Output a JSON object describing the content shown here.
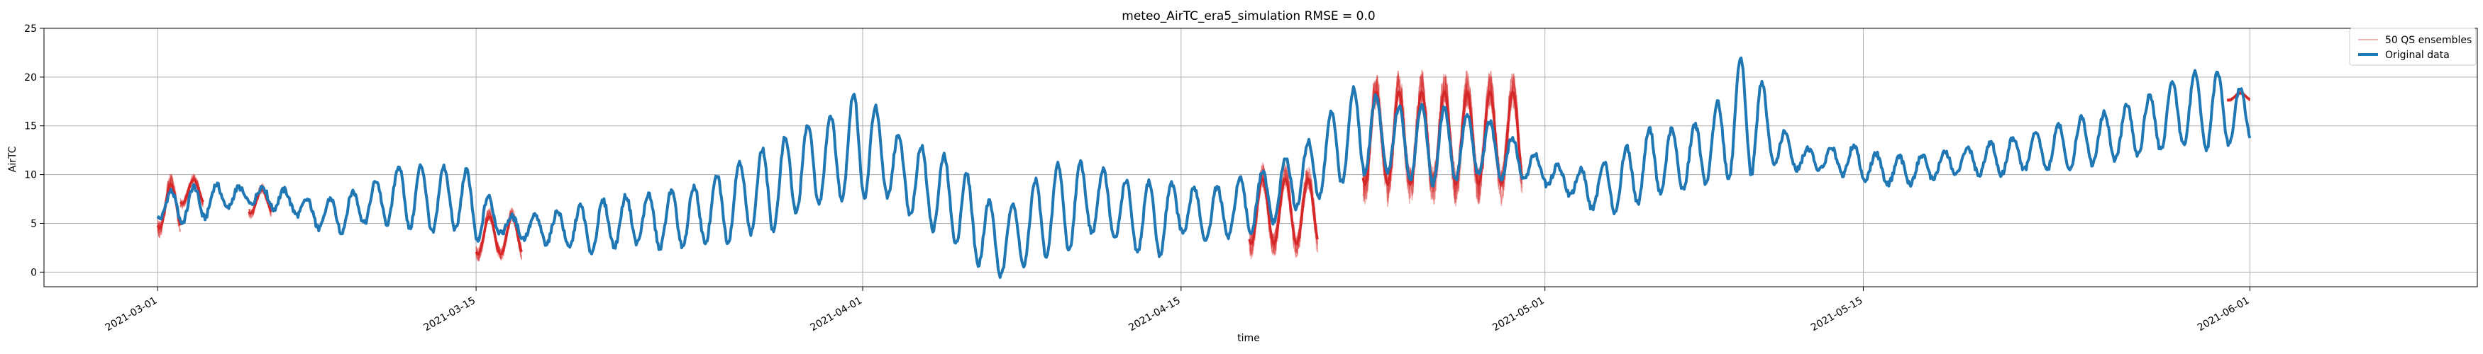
{
  "chart_data": {
    "type": "line",
    "title": "meteo_AirTC_era5_simulation  RMSE = 0.0",
    "xlabel": "time",
    "ylabel": "AirTC",
    "xlim": [
      "2021-02-24",
      "2021-06-11"
    ],
    "ylim": [
      -1.5,
      25
    ],
    "yticks": [
      0,
      5,
      10,
      15,
      20,
      25
    ],
    "xticks": [
      "2021-03-01",
      "2021-03-15",
      "2021-04-01",
      "2021-04-15",
      "2021-05-01",
      "2021-05-15",
      "2021-06-01"
    ],
    "grid": true,
    "legend": "top-right",
    "colors": {
      "original": "#1f77b4",
      "ensembles": "#d62728"
    },
    "series": [
      {
        "name": "Original data",
        "x": [
          "2021-03-01",
          "2021-03-02",
          "2021-03-03",
          "2021-03-04",
          "2021-03-05",
          "2021-03-06",
          "2021-03-07",
          "2021-03-08",
          "2021-03-09",
          "2021-03-10",
          "2021-03-11",
          "2021-03-12",
          "2021-03-13",
          "2021-03-14",
          "2021-03-15",
          "2021-03-16",
          "2021-03-17",
          "2021-03-18",
          "2021-03-19",
          "2021-03-20",
          "2021-03-21",
          "2021-03-22",
          "2021-03-23",
          "2021-03-24",
          "2021-03-25",
          "2021-03-26",
          "2021-03-27",
          "2021-03-28",
          "2021-03-29",
          "2021-03-30",
          "2021-03-31",
          "2021-04-01",
          "2021-04-02",
          "2021-04-03",
          "2021-04-04",
          "2021-04-05",
          "2021-04-06",
          "2021-04-07",
          "2021-04-08",
          "2021-04-09",
          "2021-04-10",
          "2021-04-11",
          "2021-04-12",
          "2021-04-13",
          "2021-04-14",
          "2021-04-15",
          "2021-04-16",
          "2021-04-17",
          "2021-04-18",
          "2021-04-19",
          "2021-04-20",
          "2021-04-21",
          "2021-04-22",
          "2021-04-23",
          "2021-04-24",
          "2021-04-25",
          "2021-04-26",
          "2021-04-27",
          "2021-04-28",
          "2021-04-29",
          "2021-04-30",
          "2021-05-01",
          "2021-05-02",
          "2021-05-03",
          "2021-05-04",
          "2021-05-05",
          "2021-05-06",
          "2021-05-07",
          "2021-05-08",
          "2021-05-09",
          "2021-05-10",
          "2021-05-11",
          "2021-05-12",
          "2021-05-13",
          "2021-05-14",
          "2021-05-15",
          "2021-05-16",
          "2021-05-17",
          "2021-05-18",
          "2021-05-19",
          "2021-05-20",
          "2021-05-21",
          "2021-05-22",
          "2021-05-23",
          "2021-05-24",
          "2021-05-25",
          "2021-05-26",
          "2021-05-27",
          "2021-05-28",
          "2021-05-29",
          "2021-05-30",
          "2021-05-31",
          "2021-06-01"
        ],
        "min": [
          5.5,
          5.0,
          5.5,
          6.5,
          7.0,
          6.5,
          6.0,
          4.5,
          4.0,
          5.0,
          5.0,
          4.5,
          4.0,
          4.5,
          3.0,
          4.0,
          3.5,
          3.0,
          2.5,
          2.0,
          2.5,
          3.0,
          2.5,
          2.5,
          3.0,
          3.0,
          4.0,
          4.0,
          6.0,
          7.0,
          7.5,
          7.5,
          8.0,
          6.0,
          4.5,
          3.0,
          1.0,
          -0.5,
          0.5,
          1.5,
          2.0,
          4.0,
          3.5,
          2.0,
          1.5,
          4.0,
          3.0,
          3.5,
          4.0,
          5.0,
          6.5,
          7.5,
          9.0,
          10.0,
          10.5,
          9.5,
          9.0,
          9.5,
          10.0,
          9.5,
          9.5,
          9.0,
          8.0,
          6.5,
          6.0,
          7.0,
          8.0,
          8.5,
          9.0,
          9.5,
          10.0,
          11.0,
          10.5,
          10.5,
          10.0,
          9.5,
          9.0,
          9.0,
          9.5,
          10.0,
          10.0,
          10.0,
          10.5,
          10.5,
          10.5,
          11.0,
          11.5,
          12.0,
          12.5,
          13.0,
          12.5,
          13.0,
          13.5
        ],
        "max": [
          8.0,
          8.5,
          9.0,
          9.0,
          8.5,
          9.0,
          8.0,
          7.0,
          8.0,
          8.5,
          10.0,
          11.5,
          10.5,
          11.0,
          10.0,
          6.0,
          5.5,
          6.0,
          6.5,
          7.0,
          7.5,
          8.0,
          8.0,
          8.5,
          9.0,
          10.5,
          12.0,
          13.0,
          14.5,
          15.5,
          16.5,
          19.5,
          15.0,
          13.5,
          12.5,
          11.5,
          9.0,
          6.0,
          8.0,
          10.5,
          11.5,
          11.0,
          10.0,
          9.0,
          9.5,
          9.0,
          8.5,
          9.0,
          10.0,
          10.5,
          12.5,
          14.0,
          18.0,
          19.5,
          17.0,
          17.0,
          17.5,
          16.5,
          16.0,
          15.0,
          13.0,
          11.5,
          10.5,
          10.5,
          12.0,
          13.5,
          15.5,
          14.0,
          16.0,
          18.5,
          24.0,
          16.0,
          13.0,
          12.5,
          13.0,
          13.0,
          11.5,
          12.0,
          12.0,
          12.5,
          13.0,
          13.5,
          14.0,
          14.5,
          15.5,
          16.0,
          16.5,
          17.5,
          18.5,
          20.0,
          21.0,
          20.0,
          18.0
        ]
      },
      {
        "name": "50 QS ensembles",
        "segments": [
          {
            "start": "2021-03-01",
            "end": "2021-03-02",
            "min": 3.5,
            "max": 10.0
          },
          {
            "start": "2021-03-02",
            "end": "2021-03-03",
            "min": 6.5,
            "max": 10.0
          },
          {
            "start": "2021-03-05",
            "end": "2021-03-06",
            "min": 5.5,
            "max": 9.0
          },
          {
            "start": "2021-03-15",
            "end": "2021-03-17",
            "min": 1.0,
            "max": 6.5
          },
          {
            "start": "2021-04-18",
            "end": "2021-04-21",
            "min": 1.5,
            "max": 11.0
          },
          {
            "start": "2021-04-23",
            "end": "2021-04-30",
            "min": 7.0,
            "max": 20.5
          },
          {
            "start": "2021-05-31",
            "end": "2021-06-01",
            "min": 17.5,
            "max": 18.5
          }
        ]
      }
    ]
  }
}
